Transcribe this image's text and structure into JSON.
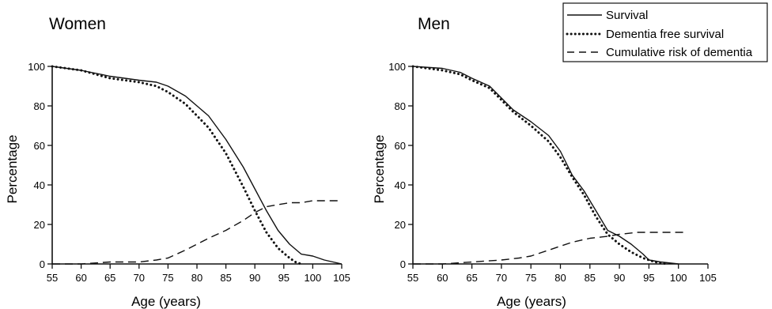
{
  "legend": {
    "items": [
      {
        "label": "Survival",
        "style": "solid"
      },
      {
        "label": "Dementia free survival",
        "style": "dotted"
      },
      {
        "label": "Cumulative risk of dementia",
        "style": "dashed"
      }
    ]
  },
  "chart_data": [
    {
      "type": "line",
      "title": "Women",
      "xlabel": "Age (years)",
      "ylabel": "Percentage",
      "xlim": [
        55,
        105
      ],
      "ylim": [
        0,
        100
      ],
      "xticks": [
        55,
        60,
        65,
        70,
        75,
        80,
        85,
        90,
        95,
        100,
        105
      ],
      "yticks": [
        0,
        20,
        40,
        60,
        80,
        100
      ],
      "grid": false,
      "series": [
        {
          "name": "Survival",
          "style": "solid",
          "color": "#111111",
          "points": [
            [
              55,
              100
            ],
            [
              60,
              98
            ],
            [
              65,
              95
            ],
            [
              70,
              93
            ],
            [
              73,
              92
            ],
            [
              75,
              90
            ],
            [
              78,
              85
            ],
            [
              80,
              80
            ],
            [
              82,
              75
            ],
            [
              85,
              63
            ],
            [
              88,
              49
            ],
            [
              90,
              38
            ],
            [
              92,
              27
            ],
            [
              94,
              17
            ],
            [
              96,
              10
            ],
            [
              98,
              5
            ],
            [
              100,
              4
            ],
            [
              102,
              2
            ],
            [
              105,
              0
            ]
          ]
        },
        {
          "name": "Dementia free survival",
          "style": "dotted",
          "color": "#111111",
          "points": [
            [
              55,
              100
            ],
            [
              60,
              98
            ],
            [
              65,
              94
            ],
            [
              70,
              92
            ],
            [
              73,
              90
            ],
            [
              75,
              87
            ],
            [
              78,
              81
            ],
            [
              80,
              75
            ],
            [
              82,
              69
            ],
            [
              85,
              56
            ],
            [
              88,
              39
            ],
            [
              90,
              27
            ],
            [
              92,
              16
            ],
            [
              94,
              8
            ],
            [
              96,
              3
            ],
            [
              97,
              1
            ],
            [
              98,
              0
            ]
          ]
        },
        {
          "name": "Cumulative risk of dementia",
          "style": "dashed",
          "color": "#111111",
          "points": [
            [
              55,
              0
            ],
            [
              60,
              0
            ],
            [
              65,
              1
            ],
            [
              70,
              1
            ],
            [
              73,
              2
            ],
            [
              75,
              3
            ],
            [
              78,
              7
            ],
            [
              80,
              10
            ],
            [
              82,
              13
            ],
            [
              85,
              17
            ],
            [
              88,
              22
            ],
            [
              90,
              26
            ],
            [
              92,
              29
            ],
            [
              94,
              30
            ],
            [
              96,
              31
            ],
            [
              98,
              31
            ],
            [
              100,
              32
            ],
            [
              105,
              32
            ]
          ]
        }
      ]
    },
    {
      "type": "line",
      "title": "Men",
      "xlabel": "Age (years)",
      "ylabel": "Percentage",
      "xlim": [
        55,
        105
      ],
      "ylim": [
        0,
        100
      ],
      "xticks": [
        55,
        60,
        65,
        70,
        75,
        80,
        85,
        90,
        95,
        100,
        105
      ],
      "yticks": [
        0,
        20,
        40,
        60,
        80,
        100
      ],
      "grid": false,
      "series": [
        {
          "name": "Survival",
          "style": "solid",
          "color": "#111111",
          "points": [
            [
              55,
              100
            ],
            [
              60,
              99
            ],
            [
              63,
              97
            ],
            [
              65,
              94
            ],
            [
              68,
              90
            ],
            [
              70,
              84
            ],
            [
              72,
              78
            ],
            [
              75,
              72
            ],
            [
              78,
              65
            ],
            [
              80,
              57
            ],
            [
              82,
              45
            ],
            [
              84,
              37
            ],
            [
              86,
              27
            ],
            [
              88,
              17
            ],
            [
              90,
              14
            ],
            [
              92,
              10
            ],
            [
              94,
              5
            ],
            [
              95,
              2
            ],
            [
              97,
              1
            ],
            [
              100,
              0
            ]
          ]
        },
        {
          "name": "Dementia free survival",
          "style": "dotted",
          "color": "#111111",
          "points": [
            [
              55,
              100
            ],
            [
              60,
              98
            ],
            [
              63,
              96
            ],
            [
              65,
              93
            ],
            [
              68,
              89
            ],
            [
              70,
              83
            ],
            [
              72,
              77
            ],
            [
              75,
              70
            ],
            [
              78,
              62
            ],
            [
              80,
              54
            ],
            [
              82,
              44
            ],
            [
              84,
              35
            ],
            [
              86,
              24
            ],
            [
              88,
              15
            ],
            [
              90,
              10
            ],
            [
              92,
              6
            ],
            [
              94,
              3
            ],
            [
              96,
              1
            ],
            [
              98,
              0
            ]
          ]
        },
        {
          "name": "Cumulative risk of dementia",
          "style": "dashed",
          "color": "#111111",
          "points": [
            [
              55,
              0
            ],
            [
              60,
              0
            ],
            [
              65,
              1
            ],
            [
              70,
              2
            ],
            [
              73,
              3
            ],
            [
              75,
              4
            ],
            [
              78,
              7
            ],
            [
              80,
              9
            ],
            [
              82,
              11
            ],
            [
              85,
              13
            ],
            [
              88,
              14
            ],
            [
              90,
              15
            ],
            [
              93,
              16
            ],
            [
              95,
              16
            ],
            [
              98,
              16
            ],
            [
              101,
              16
            ]
          ]
        }
      ]
    }
  ]
}
